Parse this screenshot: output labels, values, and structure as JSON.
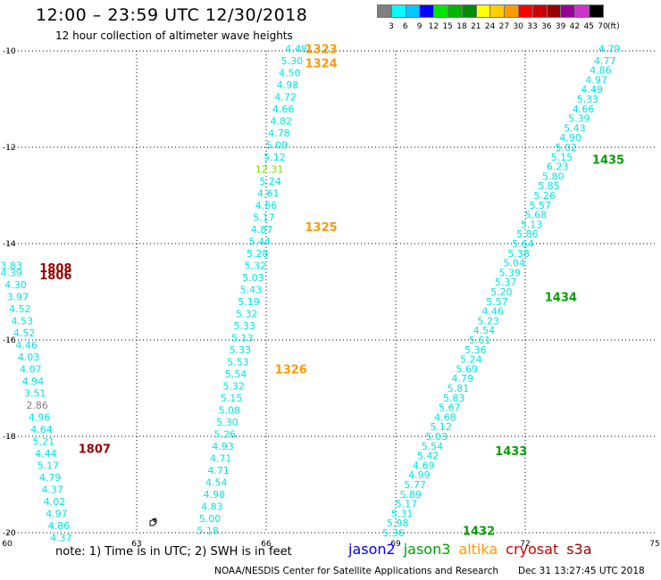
{
  "header": {
    "title": "12:00 – 23:59 UTC 12/30/2018",
    "subtitle": "12 hour collection of altimeter wave heights"
  },
  "scale": {
    "unit_label": "(ft)",
    "bins": [
      {
        "label": "3",
        "color": "#7f7f7f"
      },
      {
        "label": "6",
        "color": "#00ffff"
      },
      {
        "label": "9",
        "color": "#00c8ff"
      },
      {
        "label": "12",
        "color": "#0000ff"
      },
      {
        "label": "15",
        "color": "#00e600"
      },
      {
        "label": "18",
        "color": "#00b400"
      },
      {
        "label": "21",
        "color": "#008c00"
      },
      {
        "label": "24",
        "color": "#ffff00"
      },
      {
        "label": "27",
        "color": "#ffcc00"
      },
      {
        "label": "30",
        "color": "#ff9900"
      },
      {
        "label": "33",
        "color": "#ff0000"
      },
      {
        "label": "36",
        "color": "#cc0000"
      },
      {
        "label": "39",
        "color": "#990000"
      },
      {
        "label": "42",
        "color": "#990099"
      },
      {
        "label": "45",
        "color": "#cc33cc"
      },
      {
        "label": "70",
        "color": "#000000"
      }
    ]
  },
  "axes": {
    "lon_ticks": [
      60,
      63,
      66,
      69,
      72,
      75
    ],
    "lat_ticks": [
      -10,
      -12,
      -14,
      -16,
      -18,
      -20
    ]
  },
  "satellites": [
    {
      "name": "jason2",
      "color": "#0000ff"
    },
    {
      "name": "jason3",
      "color": "#00a000"
    },
    {
      "name": "altika",
      "color": "#ff9900"
    },
    {
      "name": "cryosat",
      "color": "#cc0000"
    },
    {
      "name": "s3a",
      "color": "#990000"
    }
  ],
  "footer": {
    "note": "note:  1) Time is in UTC;  2) SWH is in feet",
    "credit": "NOAA/NESDIS Center for Satellite Applications and Research",
    "timestamp": "Dec 31 13:27:45 UTC 2018"
  },
  "colors": {
    "cyan": "#00e5e5",
    "green_yellow": "#7ee000",
    "gray": "#7f7f7f",
    "altika": "#ff9900",
    "jason3": "#00a000",
    "s3a": "#990000"
  },
  "time_labels": [
    {
      "text": "1323",
      "lon": 66.9,
      "lat": -9.95,
      "color": "#ff9900"
    },
    {
      "text": "1324",
      "lon": 66.9,
      "lat": -10.25,
      "color": "#ff9900"
    },
    {
      "text": "1325",
      "lon": 66.9,
      "lat": -13.65,
      "color": "#ff9900"
    },
    {
      "text": "1326",
      "lon": 66.2,
      "lat": -16.6,
      "color": "#ff9900"
    },
    {
      "text": "1808",
      "lon": 60.75,
      "lat": -14.5,
      "color": "#990000"
    },
    {
      "text": "1806",
      "lon": 60.75,
      "lat": -14.65,
      "color": "#990000"
    },
    {
      "text": "1807",
      "lon": 61.65,
      "lat": -18.25,
      "color": "#990000"
    },
    {
      "text": "1435",
      "lon": 73.55,
      "lat": -12.25,
      "color": "#00a000"
    },
    {
      "text": "1434",
      "lon": 72.45,
      "lat": -15.1,
      "color": "#00a000"
    },
    {
      "text": "1433",
      "lon": 71.3,
      "lat": -18.3,
      "color": "#00a000"
    },
    {
      "text": "1432",
      "lon": 70.55,
      "lat": -19.95,
      "color": "#00a000"
    }
  ],
  "tracks": [
    {
      "satellite": "altika",
      "points": [
        {
          "lon": 66.95,
          "lat": -9.95,
          "swh": "4.48"
        },
        {
          "lon": 66.85,
          "lat": -10.2,
          "swh": "5.30"
        },
        {
          "lon": 66.8,
          "lat": -10.45,
          "swh": "4.50"
        },
        {
          "lon": 66.75,
          "lat": -10.7,
          "swh": "4.98"
        },
        {
          "lon": 66.7,
          "lat": -10.95,
          "swh": "4.72"
        },
        {
          "lon": 66.65,
          "lat": -11.2,
          "swh": "4.66"
        },
        {
          "lon": 66.6,
          "lat": -11.45,
          "swh": "4.82"
        },
        {
          "lon": 66.55,
          "lat": -11.7,
          "swh": "4.78"
        },
        {
          "lon": 66.5,
          "lat": -11.95,
          "swh": "5.09"
        },
        {
          "lon": 66.45,
          "lat": -12.2,
          "swh": "5.12"
        },
        {
          "lon": 66.4,
          "lat": -12.45,
          "swh": "12.31",
          "color": "#7ee000"
        },
        {
          "lon": 66.35,
          "lat": -12.7,
          "swh": "5.24"
        },
        {
          "lon": 66.3,
          "lat": -12.95,
          "swh": "4.61"
        },
        {
          "lon": 66.25,
          "lat": -13.2,
          "swh": "4.66"
        },
        {
          "lon": 66.2,
          "lat": -13.45,
          "swh": "5.17"
        },
        {
          "lon": 66.15,
          "lat": -13.7,
          "swh": "4.87"
        },
        {
          "lon": 66.1,
          "lat": -13.95,
          "swh": "5.44"
        },
        {
          "lon": 66.05,
          "lat": -14.2,
          "swh": "5.28"
        },
        {
          "lon": 66.0,
          "lat": -14.45,
          "swh": "5.32"
        },
        {
          "lon": 65.95,
          "lat": -14.7,
          "swh": "5.03"
        },
        {
          "lon": 65.9,
          "lat": -14.95,
          "swh": "5.43"
        },
        {
          "lon": 65.85,
          "lat": -15.2,
          "swh": "5.19"
        },
        {
          "lon": 65.8,
          "lat": -15.45,
          "swh": "5.32"
        },
        {
          "lon": 65.75,
          "lat": -15.7,
          "swh": "5.33"
        },
        {
          "lon": 65.7,
          "lat": -15.95,
          "swh": "5.13"
        },
        {
          "lon": 65.65,
          "lat": -16.2,
          "swh": "5.33"
        },
        {
          "lon": 65.6,
          "lat": -16.45,
          "swh": "5.53"
        },
        {
          "lon": 65.55,
          "lat": -16.7,
          "swh": "5.54"
        },
        {
          "lon": 65.5,
          "lat": -16.95,
          "swh": "5.32"
        },
        {
          "lon": 65.45,
          "lat": -17.2,
          "swh": "5.15"
        },
        {
          "lon": 65.4,
          "lat": -17.45,
          "swh": "5.08"
        },
        {
          "lon": 65.35,
          "lat": -17.7,
          "swh": "5.30"
        },
        {
          "lon": 65.3,
          "lat": -17.95,
          "swh": "5.26"
        },
        {
          "lon": 65.25,
          "lat": -18.2,
          "swh": "4.93"
        },
        {
          "lon": 65.2,
          "lat": -18.45,
          "swh": "4.71"
        },
        {
          "lon": 65.15,
          "lat": -18.7,
          "swh": "4.71"
        },
        {
          "lon": 65.1,
          "lat": -18.95,
          "swh": "4.54"
        },
        {
          "lon": 65.05,
          "lat": -19.2,
          "swh": "4.98"
        },
        {
          "lon": 65.0,
          "lat": -19.45,
          "swh": "4.83"
        },
        {
          "lon": 64.95,
          "lat": -19.7,
          "swh": "5.00"
        },
        {
          "lon": 64.9,
          "lat": -19.95,
          "swh": "5.18"
        }
      ]
    },
    {
      "satellite": "s3a",
      "points": [
        {
          "lon": 60.35,
          "lat": -14.45,
          "swh": "3.83"
        },
        {
          "lon": 60.35,
          "lat": -14.6,
          "swh": "4.39"
        },
        {
          "lon": 60.45,
          "lat": -14.85,
          "swh": "4.30"
        },
        {
          "lon": 60.5,
          "lat": -15.1,
          "swh": "3.97"
        },
        {
          "lon": 60.55,
          "lat": -15.35,
          "swh": "4.52"
        },
        {
          "lon": 60.6,
          "lat": -15.6,
          "swh": "4.53"
        },
        {
          "lon": 60.65,
          "lat": -15.85,
          "swh": "4.52"
        },
        {
          "lon": 60.7,
          "lat": -16.1,
          "swh": "4.46"
        },
        {
          "lon": 60.75,
          "lat": -16.35,
          "swh": "4.03"
        },
        {
          "lon": 60.8,
          "lat": -16.6,
          "swh": "4.07"
        },
        {
          "lon": 60.85,
          "lat": -16.85,
          "swh": "4.94"
        },
        {
          "lon": 60.9,
          "lat": -17.1,
          "swh": "3.51"
        },
        {
          "lon": 60.95,
          "lat": -17.35,
          "swh": "2.86",
          "color": "#7f7f7f"
        },
        {
          "lon": 61.0,
          "lat": -17.6,
          "swh": "4.96"
        },
        {
          "lon": 61.05,
          "lat": -17.85,
          "swh": "4.64"
        },
        {
          "lon": 61.1,
          "lat": -18.1,
          "swh": "5.21"
        },
        {
          "lon": 61.15,
          "lat": -18.35,
          "swh": "4.44"
        },
        {
          "lon": 61.2,
          "lat": -18.6,
          "swh": "5.17"
        },
        {
          "lon": 61.25,
          "lat": -18.85,
          "swh": "4.79"
        },
        {
          "lon": 61.3,
          "lat": -19.1,
          "swh": "4.37"
        },
        {
          "lon": 61.35,
          "lat": -19.35,
          "swh": "4.02"
        },
        {
          "lon": 61.4,
          "lat": -19.6,
          "swh": "4.97"
        },
        {
          "lon": 61.45,
          "lat": -19.85,
          "swh": "4.86"
        },
        {
          "lon": 61.5,
          "lat": -20.1,
          "swh": "4.37"
        }
      ]
    },
    {
      "satellite": "jason3",
      "points": [
        {
          "lon": 74.2,
          "lat": -9.95,
          "swh": "4.79"
        },
        {
          "lon": 74.1,
          "lat": -10.2,
          "swh": "4.77"
        },
        {
          "lon": 74.0,
          "lat": -10.4,
          "swh": "4.86"
        },
        {
          "lon": 73.9,
          "lat": -10.6,
          "swh": "4.97"
        },
        {
          "lon": 73.8,
          "lat": -10.8,
          "swh": "4.49"
        },
        {
          "lon": 73.7,
          "lat": -11.0,
          "swh": "5.33"
        },
        {
          "lon": 73.6,
          "lat": -11.2,
          "swh": "4.66"
        },
        {
          "lon": 73.5,
          "lat": -11.4,
          "swh": "5.39"
        },
        {
          "lon": 73.4,
          "lat": -11.6,
          "swh": "5.43"
        },
        {
          "lon": 73.3,
          "lat": -11.8,
          "swh": "4.90"
        },
        {
          "lon": 73.2,
          "lat": -12.0,
          "swh": "5.02"
        },
        {
          "lon": 73.1,
          "lat": -12.2,
          "swh": "5.15"
        },
        {
          "lon": 73.0,
          "lat": -12.4,
          "swh": "6.23"
        },
        {
          "lon": 72.9,
          "lat": -12.6,
          "swh": "5.80"
        },
        {
          "lon": 72.8,
          "lat": -12.8,
          "swh": "5.85"
        },
        {
          "lon": 72.7,
          "lat": -13.0,
          "swh": "5.26"
        },
        {
          "lon": 72.6,
          "lat": -13.2,
          "swh": "5.57"
        },
        {
          "lon": 72.5,
          "lat": -13.4,
          "swh": "5.68"
        },
        {
          "lon": 72.4,
          "lat": -13.6,
          "swh": "5.13"
        },
        {
          "lon": 72.3,
          "lat": -13.8,
          "swh": "5.86"
        },
        {
          "lon": 72.2,
          "lat": -14.0,
          "swh": "5.64"
        },
        {
          "lon": 72.1,
          "lat": -14.2,
          "swh": "5.38"
        },
        {
          "lon": 72.0,
          "lat": -14.4,
          "swh": "5.04"
        },
        {
          "lon": 71.9,
          "lat": -14.6,
          "swh": "5.39"
        },
        {
          "lon": 71.8,
          "lat": -14.8,
          "swh": "5.37"
        },
        {
          "lon": 71.7,
          "lat": -15.0,
          "swh": "5.20"
        },
        {
          "lon": 71.6,
          "lat": -15.2,
          "swh": "5.57"
        },
        {
          "lon": 71.5,
          "lat": -15.4,
          "swh": "4.46"
        },
        {
          "lon": 71.4,
          "lat": -15.6,
          "swh": "5.23"
        },
        {
          "lon": 71.3,
          "lat": -15.8,
          "swh": "4.54"
        },
        {
          "lon": 71.2,
          "lat": -16.0,
          "swh": "5.61"
        },
        {
          "lon": 71.1,
          "lat": -16.2,
          "swh": "5.36"
        },
        {
          "lon": 71.0,
          "lat": -16.4,
          "swh": "5.24"
        },
        {
          "lon": 70.9,
          "lat": -16.6,
          "swh": "5.69"
        },
        {
          "lon": 70.8,
          "lat": -16.8,
          "swh": "4.79"
        },
        {
          "lon": 70.7,
          "lat": -17.0,
          "swh": "5.81"
        },
        {
          "lon": 70.6,
          "lat": -17.2,
          "swh": "5.83"
        },
        {
          "lon": 70.5,
          "lat": -17.4,
          "swh": "5.67"
        },
        {
          "lon": 70.4,
          "lat": -17.6,
          "swh": "4.68"
        },
        {
          "lon": 70.3,
          "lat": -17.8,
          "swh": "5.12"
        },
        {
          "lon": 70.2,
          "lat": -18.0,
          "swh": "5.03"
        },
        {
          "lon": 70.1,
          "lat": -18.2,
          "swh": "5.54"
        },
        {
          "lon": 70.0,
          "lat": -18.4,
          "swh": "5.42"
        },
        {
          "lon": 69.9,
          "lat": -18.6,
          "swh": "4.69"
        },
        {
          "lon": 69.8,
          "lat": -18.8,
          "swh": "4.99"
        },
        {
          "lon": 69.7,
          "lat": -19.0,
          "swh": "5.77"
        },
        {
          "lon": 69.6,
          "lat": -19.2,
          "swh": "5.89"
        },
        {
          "lon": 69.5,
          "lat": -19.4,
          "swh": "5.17"
        },
        {
          "lon": 69.4,
          "lat": -19.6,
          "swh": "5.31"
        },
        {
          "lon": 69.3,
          "lat": -19.8,
          "swh": "5.98"
        },
        {
          "lon": 69.2,
          "lat": -20.0,
          "swh": "5.36"
        }
      ]
    }
  ]
}
